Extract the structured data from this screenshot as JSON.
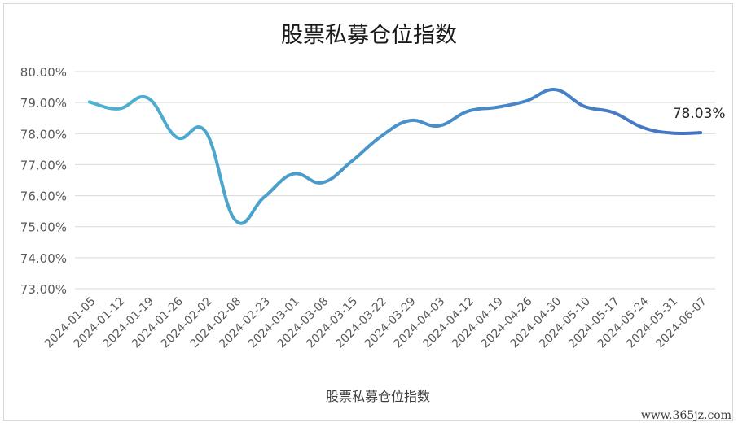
{
  "watermark": "www.365jz.com",
  "chart_data": {
    "type": "line",
    "title": "股票私募仓位指数",
    "xlabel": "",
    "ylabel": "",
    "ylim": [
      73,
      80
    ],
    "y_ticks": [
      "73.00%",
      "74.00%",
      "75.00%",
      "76.00%",
      "77.00%",
      "78.00%",
      "79.00%",
      "80.00%"
    ],
    "grid": true,
    "legend": "bottom-center",
    "line_color_start": "#4eb3cf",
    "line_color_end": "#4472c4",
    "x_labels": [
      "2024-01-05",
      "2024-01-12",
      "2024-01-19",
      "2024-01-26",
      "2024-02-02",
      "2024-02-08",
      "2024-02-23",
      "2024-03-01",
      "2024-03-08",
      "2024-03-15",
      "2024-03-22",
      "2024-03-29",
      "2024-04-03",
      "2024-04-12",
      "2024-04-19",
      "2024-04-26",
      "2024-04-30",
      "2024-05-10",
      "2024-05-17",
      "2024-05-24",
      "2024-05-31",
      "2024-06-07"
    ],
    "series": [
      {
        "name": "股票私募仓位指数",
        "values": [
          79.02,
          78.8,
          79.15,
          77.88,
          78.05,
          75.22,
          75.95,
          76.7,
          76.42,
          77.1,
          77.9,
          78.42,
          78.25,
          78.72,
          78.85,
          79.05,
          79.42,
          78.88,
          78.68,
          78.2,
          78.02,
          78.03
        ]
      }
    ],
    "annotations": [
      {
        "text": "78.03%",
        "point_index": 21
      }
    ]
  }
}
